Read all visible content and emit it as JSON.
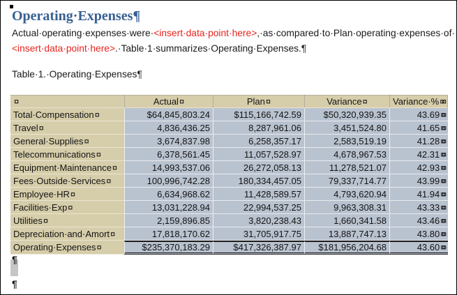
{
  "heading": {
    "text": "Operating·Expenses",
    "pilcrow": "¶"
  },
  "body_paragraph": {
    "text_before_red1": "Actual·operating·expenses·were·",
    "placeholder1": "<insert·data·point·here>",
    "text_between": ",·as·compared·to·Plan·operating·expenses·of·",
    "placeholder2": "<insert·data·point·here>",
    "text_after": ".·Table·1·summarizes·Operating·Expenses.",
    "pilcrow": "¶"
  },
  "caption": {
    "text": "Table·1.·Operating·Expenses",
    "pilcrow": "¶"
  },
  "table": {
    "cell_marker": "¤",
    "row_end_marker": "¤",
    "columns": [
      "",
      "Actual",
      "Plan",
      "Variance",
      "Variance·%"
    ],
    "rows": [
      {
        "label": "Total·Compensation",
        "actual": "$64,845,803.24",
        "plan": "$115,166,742.59",
        "variance": "$50,320,939.35",
        "variance_pct": "43.69",
        "is_total": false
      },
      {
        "label": "Travel",
        "actual": "4,836,436.25",
        "plan": "8,287,961.06",
        "variance": "3,451,524.80",
        "variance_pct": "41.65",
        "is_total": false
      },
      {
        "label": "General·Supplies",
        "actual": "3,674,837.98",
        "plan": "6,258,357.17",
        "variance": "2,583,519.19",
        "variance_pct": "41.28",
        "is_total": false
      },
      {
        "label": "Telecommunications",
        "actual": "6,378,561.45",
        "plan": "11,057,528.97",
        "variance": "4,678,967.53",
        "variance_pct": "42.31",
        "is_total": false
      },
      {
        "label": "Equipment·Maintenance",
        "actual": "14,993,537.06",
        "plan": "26,272,058.13",
        "variance": "11,278,521.07",
        "variance_pct": "42.93",
        "is_total": false
      },
      {
        "label": "Fees·Outside·Services",
        "actual": "100,996,742.28",
        "plan": "180,334,457.05",
        "variance": "79,337,714.77",
        "variance_pct": "43.99",
        "is_total": false
      },
      {
        "label": "Employee·HR",
        "actual": "6,634,968.62",
        "plan": "11,428,589.57",
        "variance": "4,793,620.94",
        "variance_pct": "41.94",
        "is_total": false
      },
      {
        "label": "Facilities·Exp",
        "actual": "13,031,228.94",
        "plan": "22,994,537.25",
        "variance": "9,963,308.31",
        "variance_pct": "43.33",
        "is_total": false
      },
      {
        "label": "Utilities",
        "actual": "2,159,896.85",
        "plan": "3,820,238.43",
        "variance": "1,660,341.58",
        "variance_pct": "43.46",
        "is_total": false
      },
      {
        "label": "Depreciation·and·Amort",
        "actual": "17,818,170.62",
        "plan": "31,705,917.75",
        "variance": "13,887,747.13",
        "variance_pct": "43.80",
        "is_total": false
      },
      {
        "label": "Operating·Expenses",
        "actual": "$235,370,183.29",
        "plan": "$417,326,387.97",
        "variance": "$181,956,204.68",
        "variance_pct": "43.60",
        "is_total": true
      }
    ]
  },
  "below_table": {
    "pilcrow1": "¶",
    "pilcrow2": "¶"
  },
  "colors": {
    "heading_blue": "#365F91",
    "placeholder_red": "#E8231D",
    "label_column_tan": "#D6CDAA",
    "data_cell_blue_gray": "#B9C2CF",
    "total_rule_dark": "#1C1C1C",
    "highlight_gray": "#C6C6C6"
  }
}
